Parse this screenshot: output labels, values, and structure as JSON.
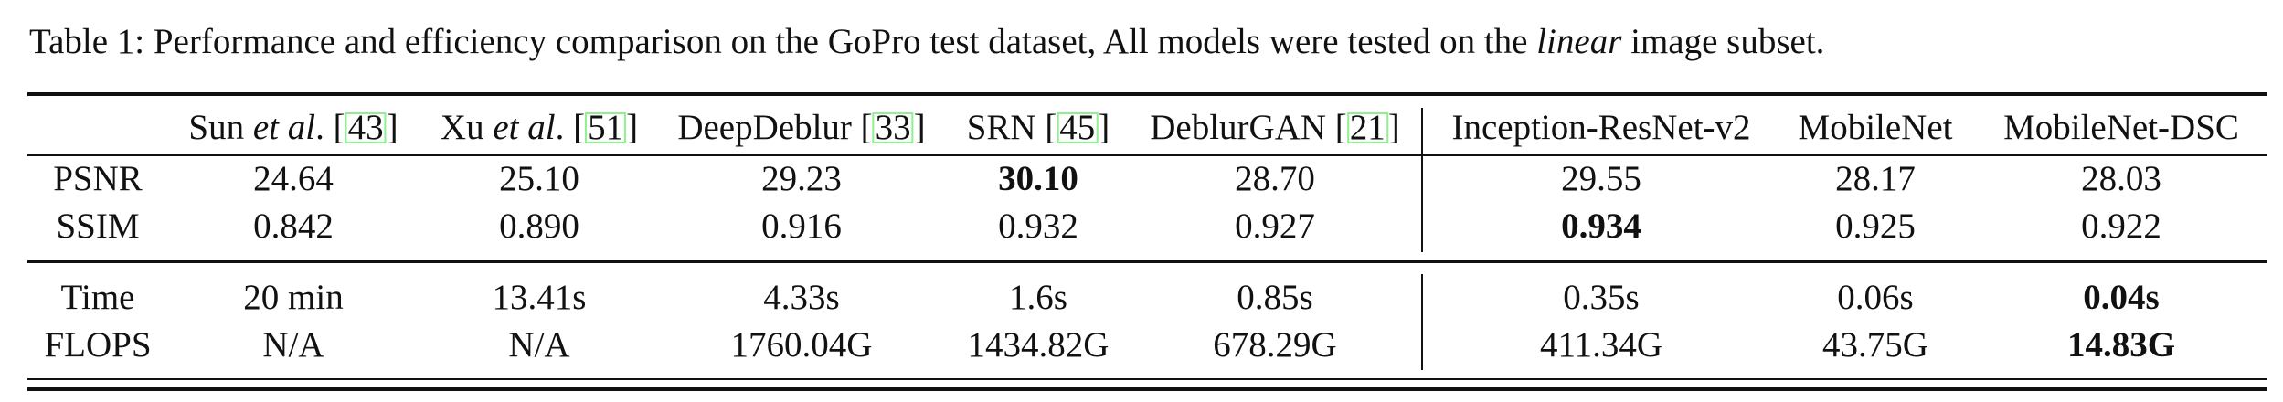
{
  "caption": {
    "prefix": "Table 1: Performance and efficiency comparison on the GoPro test dataset, All models were tested on the ",
    "italic": "linear",
    "suffix": " image subset."
  },
  "columns": [
    {
      "name": "Sun ",
      "italic": "et al",
      "after": ". [",
      "cite": "43",
      "close": "]"
    },
    {
      "name": "Xu ",
      "italic": "et al",
      "after": ". [",
      "cite": "51",
      "close": "]"
    },
    {
      "name": "DeepDeblur [",
      "italic": "",
      "after": "",
      "cite": "33",
      "close": "]"
    },
    {
      "name": "SRN [",
      "italic": "",
      "after": "",
      "cite": "45",
      "close": "]"
    },
    {
      "name": "DeblurGAN [",
      "italic": "",
      "after": "",
      "cite": "21",
      "close": "]"
    },
    {
      "name": "Inception-ResNet-v2"
    },
    {
      "name": "MobileNet"
    },
    {
      "name": "MobileNet-DSC"
    }
  ],
  "rows": [
    {
      "label": "PSNR",
      "values": [
        "24.64",
        "25.10",
        "29.23",
        "30.10",
        "28.70",
        "29.55",
        "28.17",
        "28.03"
      ],
      "bold": [
        3
      ]
    },
    {
      "label": "SSIM",
      "values": [
        "0.842",
        "0.890",
        "0.916",
        "0.932",
        "0.927",
        "0.934",
        "0.925",
        "0.922"
      ],
      "bold": [
        5
      ]
    },
    {
      "label": "Time",
      "values": [
        "20 min",
        "13.41s",
        "4.33s",
        "1.6s",
        "0.85s",
        "0.35s",
        "0.06s",
        "0.04s"
      ],
      "bold": [
        7
      ]
    },
    {
      "label": "FLOPS",
      "values": [
        "N/A",
        "N/A",
        "1760.04G",
        "1434.82G",
        "678.29G",
        "411.34G",
        "43.75G",
        "14.83G"
      ],
      "bold": [
        7
      ]
    }
  ],
  "colors": {
    "citation_box": "#8ef08e",
    "text": "#111111"
  }
}
